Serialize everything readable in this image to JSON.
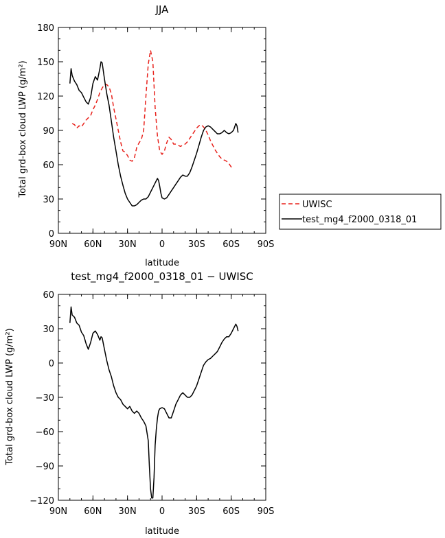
{
  "chart_data": [
    {
      "type": "line",
      "title": "JJA",
      "xlabel": "latitude",
      "ylabel": "Total grd-box cloud LWP (g/m²)",
      "xlim": [
        90,
        -90
      ],
      "ylim": [
        0,
        180
      ],
      "xticks": [
        90,
        60,
        30,
        0,
        -30,
        -60,
        -90
      ],
      "xtick_labels": [
        "90N",
        "60N",
        "30N",
        "0",
        "30S",
        "60S",
        "90S"
      ],
      "yticks": [
        0,
        30,
        60,
        90,
        120,
        150,
        180
      ],
      "ytick_labels": [
        "0",
        "30",
        "60",
        "90",
        "120",
        "150",
        "180"
      ],
      "grid": false,
      "legend_position": "right of plot",
      "series": [
        {
          "name": "UWISC",
          "color": "#e8221c",
          "dash": "dashed",
          "points": [
            [
              78,
              96
            ],
            [
              76,
              95
            ],
            [
              74,
              92
            ],
            [
              72,
              94
            ],
            [
              70,
              93
            ],
            [
              68,
              96
            ],
            [
              66,
              99
            ],
            [
              64,
              101
            ],
            [
              62,
              103
            ],
            [
              60,
              108
            ],
            [
              58,
              112
            ],
            [
              56,
              117
            ],
            [
              54,
              123
            ],
            [
              52,
              127
            ],
            [
              50,
              130
            ],
            [
              48,
              130
            ],
            [
              46,
              128
            ],
            [
              44,
              122
            ],
            [
              42,
              110
            ],
            [
              40,
              100
            ],
            [
              38,
              90
            ],
            [
              36,
              80
            ],
            [
              34,
              72
            ],
            [
              32,
              71
            ],
            [
              30,
              68
            ],
            [
              28,
              64
            ],
            [
              26,
              63
            ],
            [
              24,
              66
            ],
            [
              22,
              75
            ],
            [
              20,
              79
            ],
            [
              18,
              82
            ],
            [
              16,
              90
            ],
            [
              14,
              120
            ],
            [
              12,
              148
            ],
            [
              10,
              160
            ],
            [
              8,
              150
            ],
            [
              6,
              110
            ],
            [
              4,
              85
            ],
            [
              2,
              72
            ],
            [
              0,
              69
            ],
            [
              -2,
              72
            ],
            [
              -4,
              79
            ],
            [
              -6,
              84
            ],
            [
              -8,
              82
            ],
            [
              -10,
              78
            ],
            [
              -12,
              78
            ],
            [
              -14,
              77
            ],
            [
              -16,
              76
            ],
            [
              -18,
              77
            ],
            [
              -20,
              78
            ],
            [
              -22,
              80
            ],
            [
              -24,
              83
            ],
            [
              -26,
              86
            ],
            [
              -28,
              89
            ],
            [
              -30,
              92
            ],
            [
              -32,
              94
            ],
            [
              -34,
              95
            ],
            [
              -36,
              93
            ],
            [
              -38,
              90
            ],
            [
              -40,
              86
            ],
            [
              -42,
              81
            ],
            [
              -44,
              77
            ],
            [
              -46,
              73
            ],
            [
              -48,
              70
            ],
            [
              -50,
              67
            ],
            [
              -52,
              65
            ],
            [
              -54,
              64
            ],
            [
              -56,
              63
            ],
            [
              -58,
              61
            ],
            [
              -60,
              58
            ],
            [
              -62,
              57
            ]
          ]
        },
        {
          "name": "test_mg4_f2000_0318_01",
          "color": "#000000",
          "dash": "solid",
          "points": [
            [
              80,
              131
            ],
            [
              79,
              144
            ],
            [
              78,
              138
            ],
            [
              76,
              133
            ],
            [
              74,
              130
            ],
            [
              72,
              125
            ],
            [
              70,
              123
            ],
            [
              68,
              119
            ],
            [
              66,
              115
            ],
            [
              64,
              113
            ],
            [
              62,
              119
            ],
            [
              60,
              131
            ],
            [
              58,
              137
            ],
            [
              56,
              134
            ],
            [
              54,
              144
            ],
            [
              53,
              150
            ],
            [
              52,
              149
            ],
            [
              50,
              135
            ],
            [
              48,
              122
            ],
            [
              46,
              112
            ],
            [
              44,
              98
            ],
            [
              42,
              84
            ],
            [
              40,
              72
            ],
            [
              38,
              60
            ],
            [
              36,
              50
            ],
            [
              34,
              42
            ],
            [
              32,
              35
            ],
            [
              30,
              30
            ],
            [
              28,
              27
            ],
            [
              26,
              24
            ],
            [
              24,
              24
            ],
            [
              22,
              25
            ],
            [
              20,
              27
            ],
            [
              18,
              29
            ],
            [
              16,
              30
            ],
            [
              14,
              30
            ],
            [
              12,
              32
            ],
            [
              10,
              36
            ],
            [
              8,
              40
            ],
            [
              6,
              44
            ],
            [
              4,
              48
            ],
            [
              3,
              46
            ],
            [
              2,
              41
            ],
            [
              1,
              35
            ],
            [
              0,
              31
            ],
            [
              -2,
              30
            ],
            [
              -4,
              31
            ],
            [
              -6,
              34
            ],
            [
              -8,
              37
            ],
            [
              -10,
              40
            ],
            [
              -12,
              43
            ],
            [
              -14,
              46
            ],
            [
              -16,
              49
            ],
            [
              -18,
              51
            ],
            [
              -20,
              50
            ],
            [
              -22,
              50
            ],
            [
              -24,
              53
            ],
            [
              -26,
              58
            ],
            [
              -28,
              64
            ],
            [
              -30,
              70
            ],
            [
              -32,
              77
            ],
            [
              -34,
              84
            ],
            [
              -36,
              90
            ],
            [
              -38,
              93
            ],
            [
              -40,
              94
            ],
            [
              -42,
              93
            ],
            [
              -44,
              91
            ],
            [
              -46,
              89
            ],
            [
              -48,
              87
            ],
            [
              -50,
              87
            ],
            [
              -52,
              88
            ],
            [
              -54,
              90
            ],
            [
              -56,
              88
            ],
            [
              -58,
              87
            ],
            [
              -60,
              88
            ],
            [
              -62,
              90
            ],
            [
              -64,
              96
            ],
            [
              -65,
              94
            ],
            [
              -66,
              88
            ]
          ]
        }
      ]
    },
    {
      "type": "line",
      "title": "test_mg4_f2000_0318_01 − UWISC",
      "xlabel": "latitude",
      "ylabel": "Total grd-box cloud LWP (g/m²)",
      "xlim": [
        90,
        -90
      ],
      "ylim": [
        -120,
        60
      ],
      "xticks": [
        90,
        60,
        30,
        0,
        -30,
        -60,
        -90
      ],
      "xtick_labels": [
        "90N",
        "60N",
        "30N",
        "0",
        "30S",
        "60S",
        "90S"
      ],
      "yticks": [
        -120,
        -90,
        -60,
        -30,
        0,
        30,
        60
      ],
      "ytick_labels": [
        "−120",
        "−90",
        "−60",
        "−30",
        "0",
        "30",
        "60"
      ],
      "grid": false,
      "series": [
        {
          "color": "#000000",
          "dash": "solid",
          "points": [
            [
              80,
              35
            ],
            [
              79,
              49
            ],
            [
              78,
              42
            ],
            [
              76,
              40
            ],
            [
              74,
              35
            ],
            [
              72,
              33
            ],
            [
              70,
              27
            ],
            [
              68,
              24
            ],
            [
              66,
              17
            ],
            [
              64,
              12
            ],
            [
              62,
              18
            ],
            [
              60,
              26
            ],
            [
              58,
              28
            ],
            [
              56,
              25
            ],
            [
              54,
              20
            ],
            [
              53,
              23
            ],
            [
              52,
              22
            ],
            [
              50,
              12
            ],
            [
              48,
              2
            ],
            [
              46,
              -6
            ],
            [
              44,
              -12
            ],
            [
              42,
              -20
            ],
            [
              40,
              -26
            ],
            [
              38,
              -30
            ],
            [
              36,
              -32
            ],
            [
              34,
              -36
            ],
            [
              32,
              -38
            ],
            [
              30,
              -40
            ],
            [
              28,
              -38
            ],
            [
              26,
              -42
            ],
            [
              24,
              -44
            ],
            [
              22,
              -42
            ],
            [
              20,
              -44
            ],
            [
              18,
              -48
            ],
            [
              16,
              -51
            ],
            [
              14,
              -55
            ],
            [
              12,
              -68
            ],
            [
              11,
              -90
            ],
            [
              10,
              -110
            ],
            [
              9,
              -118
            ],
            [
              8,
              -118
            ],
            [
              7,
              -100
            ],
            [
              6,
              -72
            ],
            [
              5,
              -58
            ],
            [
              4,
              -48
            ],
            [
              3,
              -42
            ],
            [
              2,
              -40
            ],
            [
              0,
              -39
            ],
            [
              -2,
              -40
            ],
            [
              -4,
              -44
            ],
            [
              -6,
              -48
            ],
            [
              -8,
              -48
            ],
            [
              -10,
              -42
            ],
            [
              -12,
              -36
            ],
            [
              -14,
              -32
            ],
            [
              -16,
              -28
            ],
            [
              -18,
              -26
            ],
            [
              -20,
              -28
            ],
            [
              -22,
              -30
            ],
            [
              -24,
              -30
            ],
            [
              -26,
              -28
            ],
            [
              -28,
              -24
            ],
            [
              -30,
              -20
            ],
            [
              -32,
              -14
            ],
            [
              -34,
              -8
            ],
            [
              -36,
              -2
            ],
            [
              -38,
              1
            ],
            [
              -40,
              3
            ],
            [
              -42,
              4
            ],
            [
              -44,
              6
            ],
            [
              -46,
              8
            ],
            [
              -48,
              10
            ],
            [
              -50,
              14
            ],
            [
              -52,
              18
            ],
            [
              -54,
              21
            ],
            [
              -56,
              23
            ],
            [
              -58,
              23
            ],
            [
              -60,
              26
            ],
            [
              -62,
              30
            ],
            [
              -64,
              34
            ],
            [
              -65,
              32
            ],
            [
              -66,
              28
            ]
          ]
        }
      ]
    }
  ]
}
